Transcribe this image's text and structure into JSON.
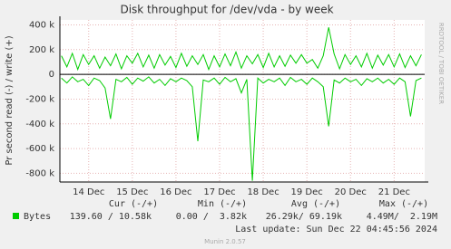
{
  "chart_data": {
    "type": "line",
    "title": "Disk throughput for /dev/vda - by week",
    "y_label": "Pr second read (-) / write (+)",
    "side_label": "RRDTOOL / TOBI OETIKER",
    "x": [
      13.875,
      14,
      14.125,
      14.25,
      14.375,
      14.5,
      14.625,
      14.75,
      14.875,
      15,
      15.125,
      15.25,
      15.375,
      15.5,
      15.625,
      15.75,
      15.875,
      16,
      16.125,
      16.25,
      16.375,
      16.5,
      16.625,
      16.75,
      16.875,
      17,
      17.125,
      17.25,
      17.375,
      17.5,
      17.625,
      17.75,
      17.875,
      18,
      18.125,
      18.25,
      18.375,
      18.5,
      18.625,
      18.75,
      18.875,
      19,
      19.125,
      19.25,
      19.375,
      19.5,
      19.625,
      19.75,
      19.875,
      20,
      20.125,
      20.25,
      20.375,
      20.5,
      20.625,
      20.75,
      20.875,
      21,
      21.125,
      21.25,
      21.375,
      21.5,
      21.625,
      21.75,
      21.875,
      22,
      22.125
    ],
    "series": [
      {
        "name": "Bytes",
        "color": "#00cc00",
        "values": [
          150000,
          60000,
          170000,
          40000,
          160000,
          80000,
          150000,
          50000,
          140000,
          70000,
          165000,
          45000,
          150000,
          90000,
          170000,
          60000,
          155000,
          50000,
          160000,
          75000,
          145000,
          55000,
          170000,
          65000,
          150000,
          80000,
          160000,
          40000,
          150000,
          60000,
          165000,
          70000,
          180000,
          50000,
          150000,
          85000,
          160000,
          55000,
          170000,
          60000,
          150000,
          65000,
          155000,
          90000,
          160000,
          90000,
          120000,
          50000,
          150000,
          380000,
          165000,
          45000,
          160000,
          80000,
          150000,
          60000,
          170000,
          50000,
          155000,
          75000,
          160000,
          60000,
          165000,
          55000,
          150000,
          70000,
          160000
        ],
        "negative_values": [
          -30000,
          -70000,
          -20000,
          -60000,
          -40000,
          -90000,
          -30000,
          -50000,
          -110000,
          -360000,
          -40000,
          -60000,
          -25000,
          -80000,
          -30000,
          -55000,
          -20000,
          -70000,
          -40000,
          -90000,
          -35000,
          -60000,
          -30000,
          -50000,
          -100000,
          -540000,
          -45000,
          -60000,
          -30000,
          -80000,
          -25000,
          -60000,
          -35000,
          -150000,
          -40000,
          -860000,
          -30000,
          -70000,
          -40000,
          -60000,
          -30000,
          -90000,
          -25000,
          -60000,
          -40000,
          -80000,
          -30000,
          -60000,
          -100000,
          -420000,
          -45000,
          -70000,
          -30000,
          -60000,
          -40000,
          -90000,
          -35000,
          -60000,
          -30000,
          -70000,
          -40000,
          -80000,
          -30000,
          -60000,
          -340000,
          -50000,
          -30000
        ]
      }
    ],
    "xlim": [
      13.84,
      22.2
    ],
    "xticks": [
      {
        "value": 14.5,
        "label": "14 Dec"
      },
      {
        "value": 15.5,
        "label": "15 Dec"
      },
      {
        "value": 16.5,
        "label": "16 Dec"
      },
      {
        "value": 17.5,
        "label": "17 Dec"
      },
      {
        "value": 18.5,
        "label": "18 Dec"
      },
      {
        "value": 19.5,
        "label": "19 Dec"
      },
      {
        "value": 20.5,
        "label": "20 Dec"
      },
      {
        "value": 21.5,
        "label": "21 Dec"
      }
    ],
    "ylim": [
      -870000,
      440000
    ],
    "yticks": [
      {
        "value": -800000,
        "label": "-800 k"
      },
      {
        "value": -600000,
        "label": "-600 k"
      },
      {
        "value": -400000,
        "label": "-400 k"
      },
      {
        "value": -200000,
        "label": "-200 k"
      },
      0,
      {
        "value": 200000,
        "label": "200 k"
      },
      {
        "value": 400000,
        "label": "400 k"
      }
    ],
    "grid": true,
    "legend_table": {
      "headers": [
        "Cur (-/+)",
        "Min (-/+)",
        "Avg (-/+)",
        "Max (-/+)"
      ],
      "rows": [
        {
          "name": "Bytes",
          "cells": [
            "139.60 / 10.58k",
            "0.00 /  3.82k",
            "26.29k/ 69.19k",
            "4.49M/  2.19M"
          ]
        }
      ]
    },
    "last_update": "Last update: Sun Dec 22 04:45:56 2024",
    "footer": "Munin 2.0.57"
  }
}
